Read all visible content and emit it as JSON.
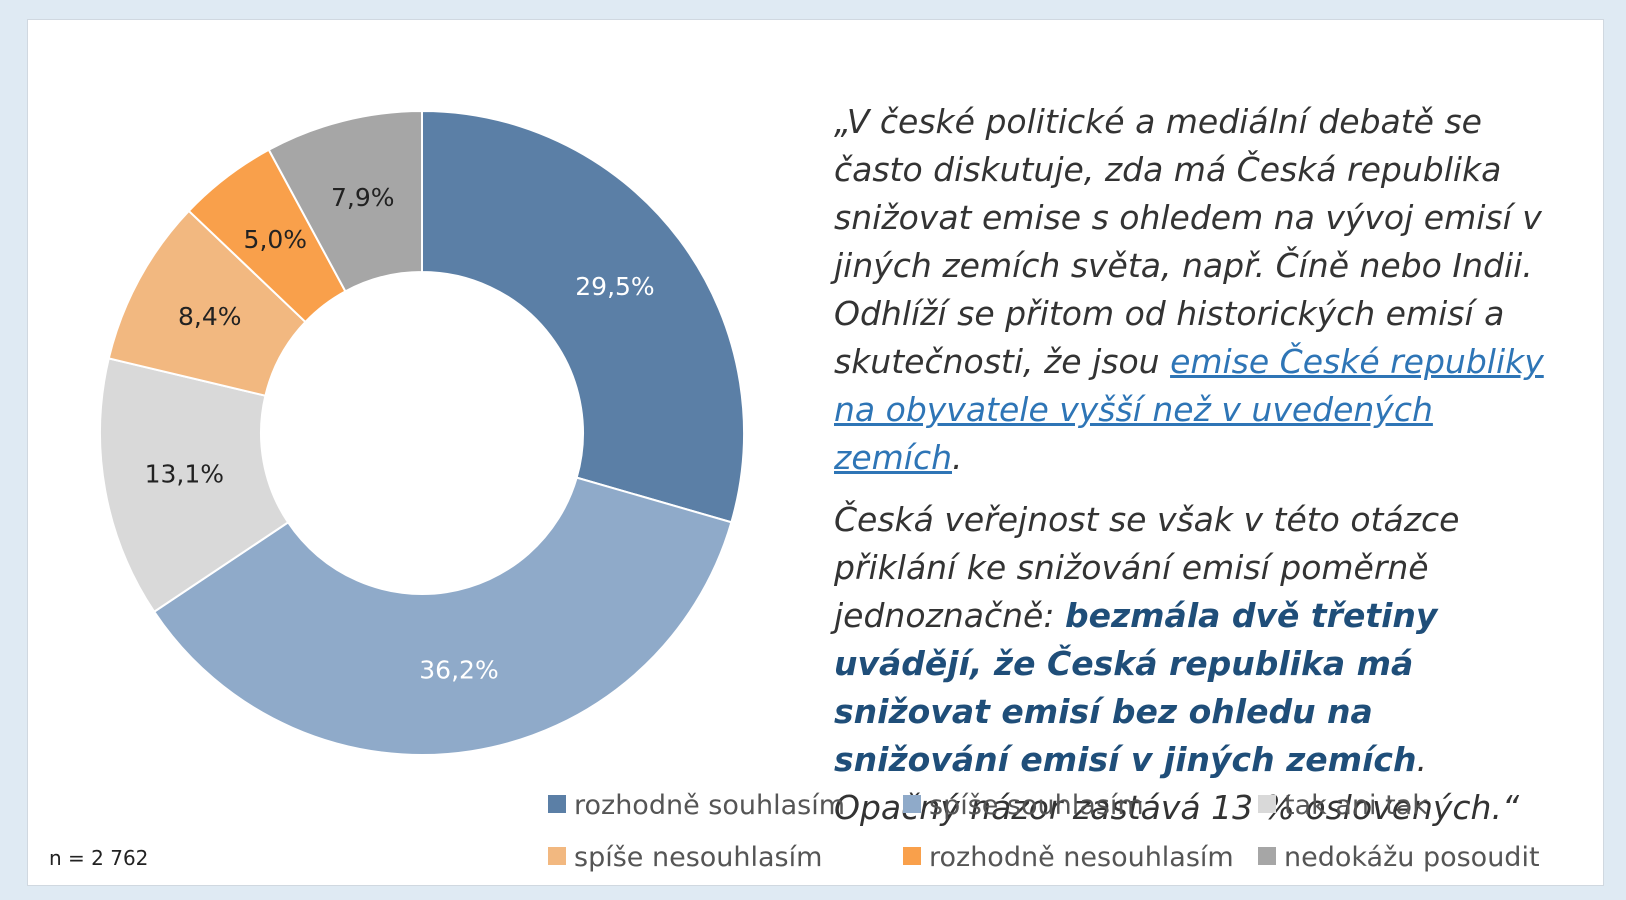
{
  "chart_data": {
    "type": "donut",
    "categories": [
      "rozhodně souhlasím",
      "spíše souhlasím",
      "tak ani tak",
      "spíše nesouhlasím",
      "rozhodně nesouhlasím",
      "nedokážu posoudit"
    ],
    "values": [
      29.5,
      36.2,
      13.1,
      8.4,
      5.0,
      7.9
    ],
    "value_labels": [
      "29,5%",
      "36,2%",
      "13,1%",
      "8,4%",
      "5,0%",
      "7,9%"
    ],
    "colors": [
      "#5b7fa6",
      "#8faac9",
      "#d9d9d9",
      "#f2b880",
      "#f9a04b",
      "#a6a6a6"
    ],
    "label_colors": [
      "#ffffff",
      "#ffffff",
      "#222222",
      "#222222",
      "#222222",
      "#222222"
    ],
    "legend": "bottom-right",
    "note": "n = 2 762"
  },
  "quote": {
    "paragraph_1": {
      "text": "„V české politické a mediální debatě se často diskutuje, zda má Česká republika snižovat emise s ohledem na vývoj emisí v jiných zemích světa, např. Číně nebo Indii. Odhlíží se přitom od historických emisí a skutečnosti, že jsou ",
      "link": "emise České republiky na obyvatele vyšší než v uvedených zemích",
      "end": "."
    },
    "paragraph_2": {
      "text": "Česká veřejnost se však v této otázce přiklání ke snižování emisí poměrně jednoznačně: ",
      "emphasis": "bezmála dvě třetiny uvádějí, že Česká republika má snižovat emisí bez ohledu na snižování emisí v jiných zemích",
      "end": ". Opačný názor zastává 13 % oslovených.“"
    }
  }
}
